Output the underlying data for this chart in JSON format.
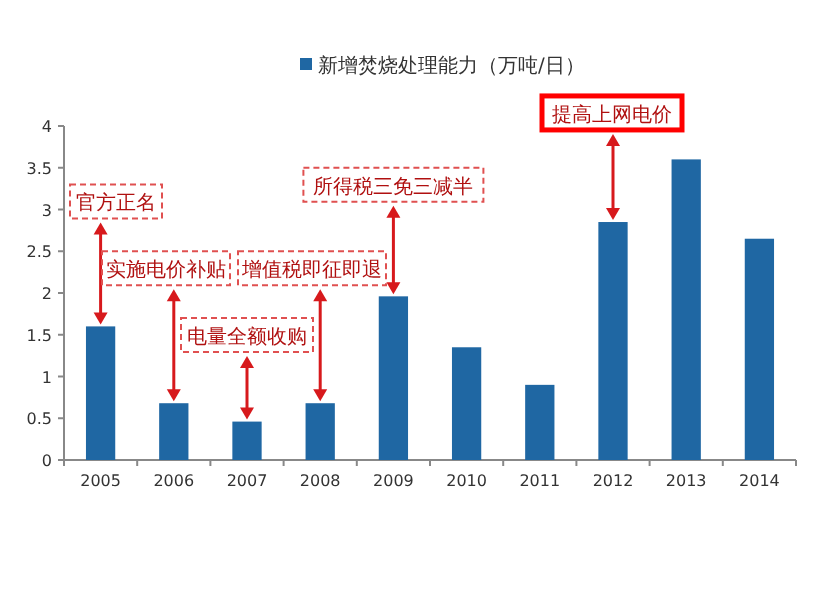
{
  "chart_data": {
    "type": "bar",
    "categories": [
      "2005",
      "2006",
      "2007",
      "2008",
      "2009",
      "2010",
      "2011",
      "2012",
      "2013",
      "2014"
    ],
    "series": [
      {
        "name": "新增焚烧处理能力（万吨/日）",
        "color": "#1f67a3",
        "values": [
          1.6,
          0.68,
          0.46,
          0.68,
          1.96,
          1.35,
          0.9,
          2.85,
          3.6,
          2.65
        ]
      }
    ],
    "ylim": [
      0,
      4
    ],
    "yticks": [
      0,
      0.5,
      1,
      1.5,
      2,
      2.5,
      3,
      3.5,
      4
    ],
    "legend": "top",
    "grid": false,
    "annotations": [
      {
        "text": "官方正名",
        "x": "2005",
        "y": 1.6
      },
      {
        "text": "实施电价补贴",
        "x": "2006",
        "y": 0.68
      },
      {
        "text": "电量全额收购",
        "x": "2007",
        "y": 0.46
      },
      {
        "text": "增值税即征即退",
        "x": "2008",
        "y": 0.68
      },
      {
        "text": "所得税三免三减半",
        "x": "2009",
        "y": 1.96
      },
      {
        "text": "提高上网电价",
        "x": "2012",
        "y": 2.85
      }
    ]
  }
}
